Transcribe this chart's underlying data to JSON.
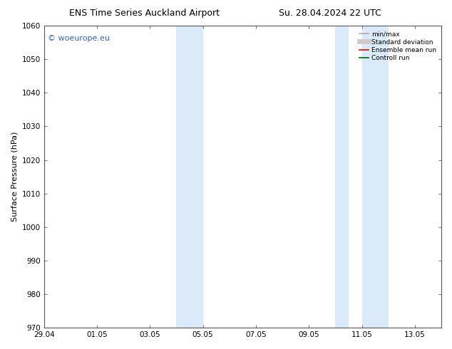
{
  "title_left": "ENS Time Series Auckland Airport",
  "title_right": "Su. 28.04.2024 22 UTC",
  "ylabel": "Surface Pressure (hPa)",
  "ylim": [
    970,
    1060
  ],
  "yticks": [
    970,
    980,
    990,
    1000,
    1010,
    1020,
    1030,
    1040,
    1050,
    1060
  ],
  "x_start": "2024-04-29",
  "x_end": "2024-05-14",
  "xtick_labels": [
    "29.04",
    "01.05",
    "03.05",
    "05.05",
    "07.05",
    "09.05",
    "11.05",
    "13.05"
  ],
  "xtick_days": [
    0,
    2,
    4,
    6,
    8,
    10,
    12,
    14
  ],
  "shaded_regions": [
    {
      "start_day": 5.0,
      "end_day": 6.0,
      "color": "#daeaf8"
    },
    {
      "start_day": 11.0,
      "end_day": 11.5,
      "color": "#daeaf8"
    },
    {
      "start_day": 12.0,
      "end_day": 13.0,
      "color": "#daeaf8"
    }
  ],
  "watermark_text": "© woeurope.eu",
  "watermark_color": "#3366bb",
  "watermark_fontsize": 8,
  "legend_entries": [
    {
      "label": "min/max",
      "color": "#aaaaaa",
      "lw": 1.2,
      "style": "solid"
    },
    {
      "label": "Standard deviation",
      "color": "#cccccc",
      "lw": 5,
      "style": "solid"
    },
    {
      "label": "Ensemble mean run",
      "color": "#ee0000",
      "lw": 1.2,
      "style": "solid"
    },
    {
      "label": "Controll run",
      "color": "#006600",
      "lw": 1.2,
      "style": "solid"
    }
  ],
  "bg_color": "#ffffff",
  "plot_bg_color": "#ffffff",
  "title_fontsize": 9,
  "axis_fontsize": 8,
  "tick_fontsize": 7.5
}
